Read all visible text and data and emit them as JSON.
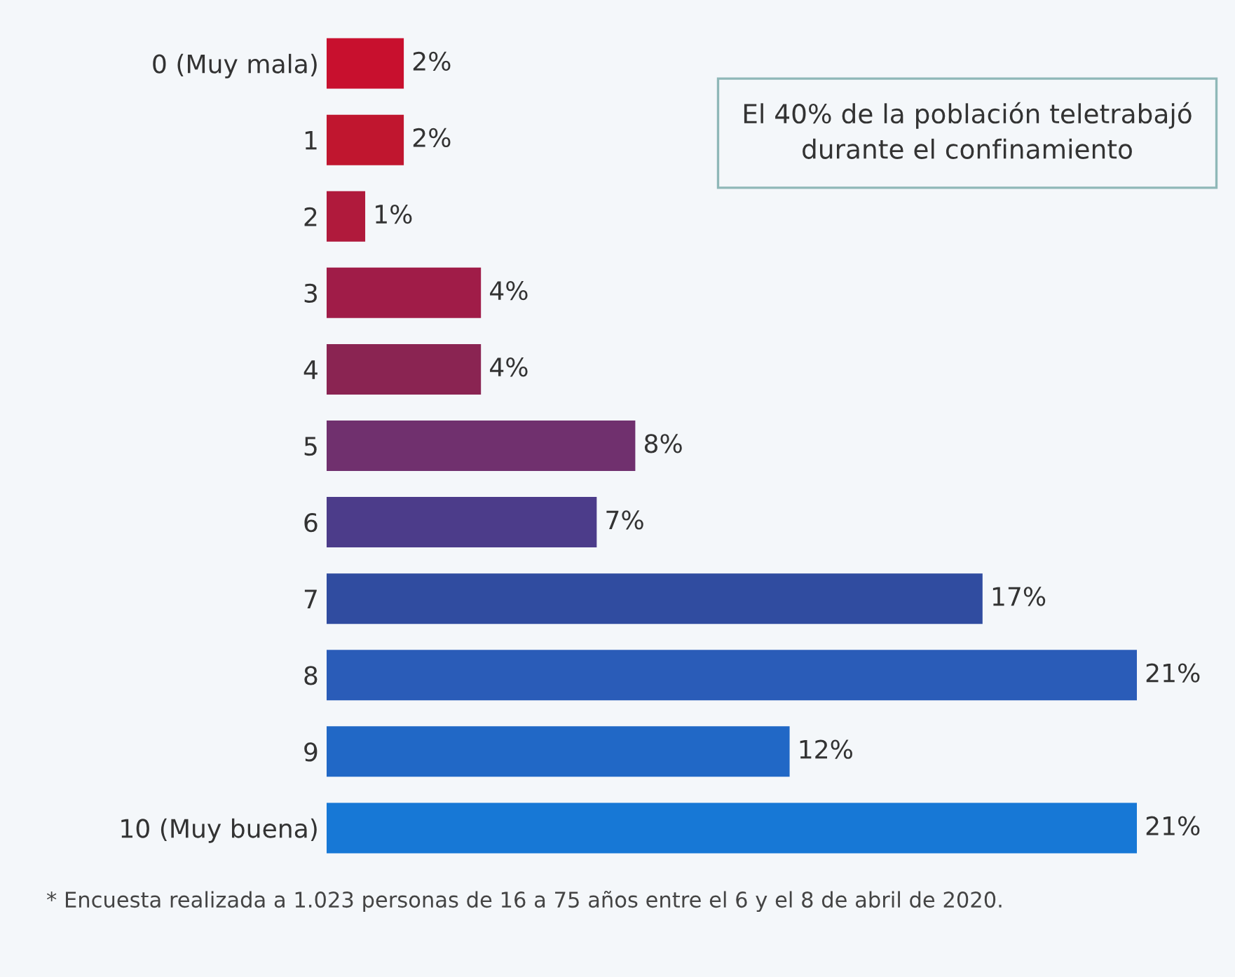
{
  "chart_data": {
    "type": "bar",
    "orientation": "horizontal",
    "tick_labels": "y",
    "categories": [
      "0 (Muy mala)",
      "1",
      "2",
      "3",
      "4",
      "5",
      "6",
      "7",
      "8",
      "9",
      "10 (Muy buena)"
    ],
    "values": [
      2,
      2,
      1,
      4,
      4,
      8,
      7,
      17,
      21,
      12,
      21
    ],
    "value_labels": [
      "2%",
      "2%",
      "1%",
      "4%",
      "4%",
      "8%",
      "7%",
      "17%",
      "21%",
      "12%",
      "21%"
    ],
    "colors": [
      "#c8102e",
      "#c0162f",
      "#b01a3c",
      "#a01c48",
      "#8a2452",
      "#70306e",
      "#4c3c8a",
      "#304ca0",
      "#2a5cb8",
      "#2168c6",
      "#1778d6"
    ],
    "annotations": [
      "El 40% de la población teletrabajó durante el confinamiento",
      "* Encuesta realizada a 1.023 personas de 16 a 75 años entre el 6 y el 8 de abril de 2020."
    ]
  }
}
